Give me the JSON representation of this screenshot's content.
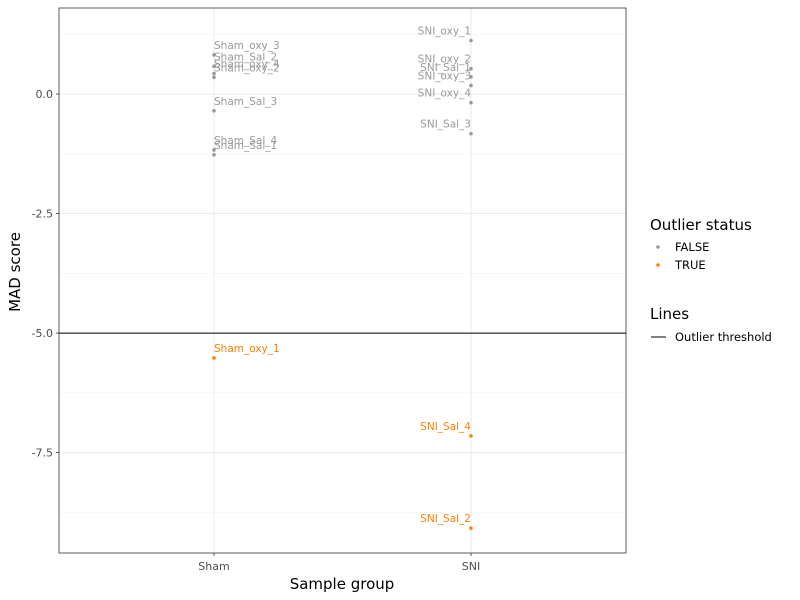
{
  "chart_data": {
    "type": "scatter",
    "title": "",
    "xlabel": "Sample group",
    "ylabel": "MAD score",
    "categories": [
      "Sham",
      "SNI"
    ],
    "ylim": [
      -9.6,
      1.8
    ],
    "yticks": [
      0.0,
      -2.5,
      -5.0,
      -7.5
    ],
    "ytick_labels": [
      "0.0",
      "-2.5",
      "-5.0",
      "-7.5"
    ],
    "threshold": -5.0,
    "grid": true,
    "legend_position": "right",
    "legend": {
      "outlier_title": "Outlier status",
      "outlier_entries": [
        {
          "label": "FALSE",
          "color": "#999999"
        },
        {
          "label": "TRUE",
          "color": "#ff7f00"
        }
      ],
      "lines_title": "Lines",
      "lines_entries": [
        {
          "label": "Outlier threshold",
          "color": "#000000"
        }
      ]
    },
    "points": [
      {
        "group": "Sham",
        "label": "Sham_oxy_3",
        "y": 0.82,
        "outlier": false
      },
      {
        "group": "Sham",
        "label": "Sham_Sal_2",
        "y": 0.58,
        "outlier": false
      },
      {
        "group": "Sham",
        "label": "Sham_oxy_4",
        "y": 0.43,
        "outlier": false
      },
      {
        "group": "Sham",
        "label": "Sham_oxy_2",
        "y": 0.35,
        "outlier": false
      },
      {
        "group": "Sham",
        "label": "Sham_Sal_3",
        "y": -0.35,
        "outlier": false
      },
      {
        "group": "Sham",
        "label": "Sham_Sal_4",
        "y": -1.17,
        "outlier": false
      },
      {
        "group": "Sham",
        "label": "Sham_Sal_1",
        "y": -1.27,
        "outlier": false
      },
      {
        "group": "Sham",
        "label": "Sham_oxy_1",
        "y": -5.52,
        "outlier": true
      },
      {
        "group": "SNI",
        "label": "SNI_oxy_1",
        "y": 1.12,
        "outlier": false
      },
      {
        "group": "SNI",
        "label": "SNI_oxy_2",
        "y": 0.53,
        "outlier": false
      },
      {
        "group": "SNI",
        "label": "SNI_Sal_1",
        "y": 0.36,
        "outlier": false
      },
      {
        "group": "SNI",
        "label": "SNI_oxy_3",
        "y": 0.18,
        "outlier": false
      },
      {
        "group": "SNI",
        "label": "SNI_oxy_4",
        "y": -0.18,
        "outlier": false
      },
      {
        "group": "SNI",
        "label": "SNI_Sal_3",
        "y": -0.83,
        "outlier": false
      },
      {
        "group": "SNI",
        "label": "SNI_Sal_4",
        "y": -7.15,
        "outlier": true
      },
      {
        "group": "SNI",
        "label": "SNI_Sal_2",
        "y": -9.08,
        "outlier": true
      }
    ]
  }
}
